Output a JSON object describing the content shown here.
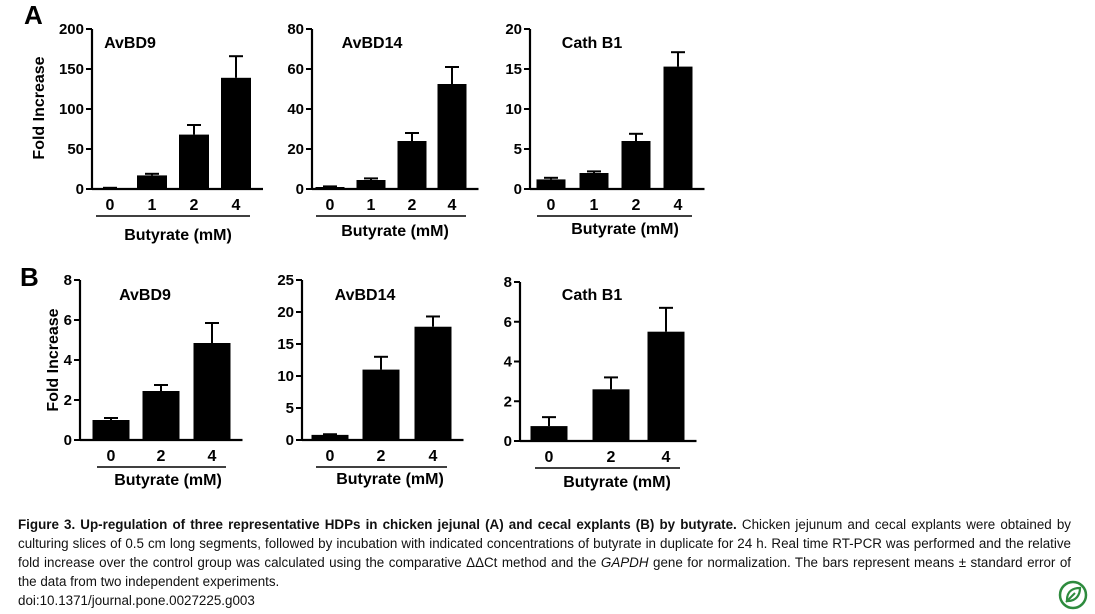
{
  "figure": {
    "panel_labels": [
      "A",
      "B"
    ],
    "caption_title": "Figure 3. Up-regulation of three representative HDPs in chicken jejunal (A) and cecal explants (B) by butyrate.",
    "caption_text_1": "Chicken jejunum and cecal explants were obtained by culturing slices of 0.5 cm long segments, followed by incubation with indicated concentrations of butyrate in duplicate for 24 h. Real time RT-PCR was performed and the relative fold increase over the control group was calculated using the comparative ΔΔCt method and the ",
    "caption_gene": "GAPDH",
    "caption_text_2": " gene for normalization. The bars represent means ± standard error of the data from two independent experiments.",
    "doi": "doi:10.1371/journal.pone.0027225.g003",
    "logo_icon": "plos-leaf-icon",
    "accent_color": "#2e8b3e"
  },
  "chart_data": [
    {
      "panel": "A",
      "type": "bar",
      "title": "AvBD9",
      "xlabel": "Butyrate (mM)",
      "ylabel": "Fold Increase",
      "categories": [
        "0",
        "1",
        "2",
        "4"
      ],
      "values": [
        1,
        17,
        68,
        139
      ],
      "errors": [
        0.5,
        2,
        12,
        27
      ],
      "ylim": [
        0,
        200
      ],
      "yticks": [
        0,
        50,
        100,
        150,
        200
      ]
    },
    {
      "panel": "A",
      "type": "bar",
      "title": "AvBD14",
      "xlabel": "Butyrate (mM)",
      "ylabel": "",
      "categories": [
        "0",
        "1",
        "2",
        "4"
      ],
      "values": [
        1,
        4.5,
        24,
        52.5
      ],
      "errors": [
        0.3,
        0.8,
        4,
        8.5
      ],
      "ylim": [
        0,
        80
      ],
      "yticks": [
        0,
        20,
        40,
        60,
        80
      ]
    },
    {
      "panel": "A",
      "type": "bar",
      "title": "Cath B1",
      "xlabel": "Butyrate (mM)",
      "ylabel": "",
      "categories": [
        "0",
        "1",
        "2",
        "4"
      ],
      "values": [
        1.2,
        2,
        6,
        15.3
      ],
      "errors": [
        0.2,
        0.2,
        0.9,
        1.8
      ],
      "ylim": [
        0,
        20
      ],
      "yticks": [
        0,
        5,
        10,
        15,
        20
      ]
    },
    {
      "panel": "B",
      "type": "bar",
      "title": "AvBD9",
      "xlabel": "Butyrate (mM)",
      "ylabel": "Fold Increase",
      "categories": [
        "0",
        "2",
        "4"
      ],
      "values": [
        1,
        2.45,
        4.85
      ],
      "errors": [
        0.1,
        0.3,
        1
      ],
      "ylim": [
        0,
        8
      ],
      "yticks": [
        0,
        2,
        4,
        6,
        8
      ]
    },
    {
      "panel": "B",
      "type": "bar",
      "title": "AvBD14",
      "xlabel": "Butyrate (mM)",
      "ylabel": "",
      "categories": [
        "0",
        "2",
        "4"
      ],
      "values": [
        0.8,
        11,
        17.7
      ],
      "errors": [
        0.1,
        2,
        1.6
      ],
      "ylim": [
        0,
        25
      ],
      "yticks": [
        0,
        5,
        10,
        15,
        20,
        25
      ]
    },
    {
      "panel": "B",
      "type": "bar",
      "title": "Cath B1",
      "xlabel": "Butyrate (mM)",
      "ylabel": "",
      "categories": [
        "0",
        "2",
        "4"
      ],
      "values": [
        0.75,
        2.6,
        5.5
      ],
      "errors": [
        0.45,
        0.6,
        1.2
      ],
      "ylim": [
        0,
        8
      ],
      "yticks": [
        0,
        2,
        4,
        6,
        8
      ]
    }
  ]
}
